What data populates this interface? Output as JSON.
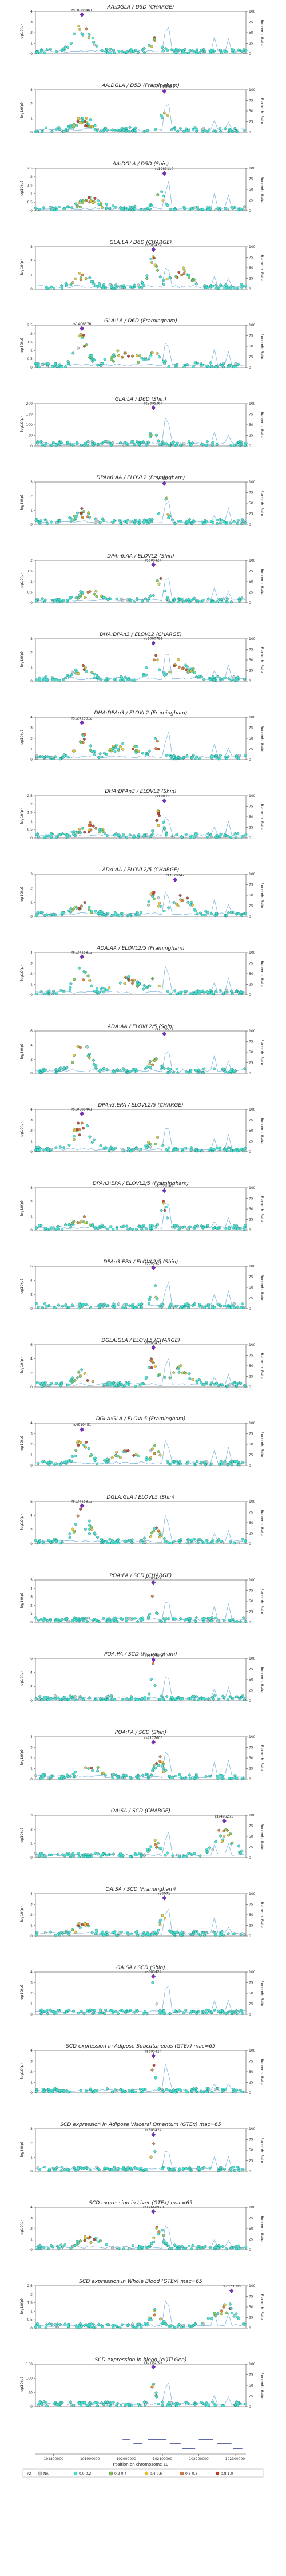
{
  "chart_data": {
    "type": "scatter",
    "xlabel": "Position on chromosome 10",
    "ylabel": "-log10(p)",
    "y2label": "Recomb. Rate",
    "x_ticks": [
      "101800000",
      "101900000",
      "102000000",
      "102100000",
      "102200000",
      "102300000"
    ],
    "xlim": [
      101750000,
      102330000
    ],
    "recomb_ticks": [
      0,
      25,
      50,
      75,
      100
    ],
    "legend": {
      "title": "r2",
      "entries": [
        {
          "label": "NA",
          "color": "#cccccc"
        },
        {
          "label": "0.0-0.2",
          "color": "#40e0d0"
        },
        {
          "label": "0.2-0.4",
          "color": "#7ec850"
        },
        {
          "label": "0.4-0.6",
          "color": "#e6c12e"
        },
        {
          "label": "0.6-0.8",
          "color": "#e8742a"
        },
        {
          "label": "0.8-1.0",
          "color": "#c0392b"
        }
      ]
    },
    "panels": [
      {
        "title": "AA:DGLA / D5D (CHARGE)",
        "ylim": [
          0,
          4
        ],
        "yticks": [
          0,
          1,
          2,
          3,
          4
        ],
        "lead": "rs10883461",
        "lead_pos": 101878000,
        "lead_y": 3.7,
        "shape": 1
      },
      {
        "title": "AA:DGLA / D5D (Framingham)",
        "ylim": [
          0,
          3
        ],
        "yticks": [
          0,
          1,
          2,
          3
        ],
        "lead": "rs11557927",
        "lead_pos": 102105000,
        "lead_y": 2.9,
        "shape": 2
      },
      {
        "title": "AA:DGLA / D5D (Shin)",
        "ylim": [
          0,
          2.5
        ],
        "yticks": [
          0,
          0.5,
          1,
          1.5,
          2,
          2.5
        ],
        "lead": "rs1983110",
        "lead_pos": 102105000,
        "lead_y": 2.2,
        "shape": 3
      },
      {
        "title": "GLA:LA / D6D (CHARGE)",
        "ylim": [
          0,
          3
        ],
        "yticks": [
          0,
          1,
          2,
          3
        ],
        "lead": "rs603424",
        "lead_pos": 102075000,
        "lead_y": 2.8,
        "shape": 4
      },
      {
        "title": "GLA:LA / D6D (Framingham)",
        "ylim": [
          0,
          2.5
        ],
        "yticks": [
          0,
          0.5,
          1,
          1.5,
          2,
          2.5
        ],
        "lead": "rs1406576",
        "lead_pos": 101878000,
        "lead_y": 2.3,
        "shape": 5
      },
      {
        "title": "GLA:LA / D6D (Shin)",
        "ylim": [
          0,
          200
        ],
        "yticks": [
          0,
          50,
          100,
          150,
          200
        ],
        "lead": "rs2305364",
        "lead_pos": 102075000,
        "lead_y": 180,
        "shape": 6
      },
      {
        "title": "DPAn6:AA / ELOVL2 (Framingham)",
        "ylim": [
          0,
          3
        ],
        "yticks": [
          0,
          1,
          2,
          3
        ],
        "lead": "rs3071",
        "lead_pos": 102105000,
        "lead_y": 2.9,
        "shape": 2
      },
      {
        "title": "DPAn6:AA / ELOVL2 (Shin)",
        "ylim": [
          0,
          2
        ],
        "yticks": [
          0,
          0.5,
          1,
          1.5,
          2
        ],
        "lead": "rs603424",
        "lead_pos": 102075000,
        "lead_y": 1.8,
        "shape": 3
      },
      {
        "title": "DHA:DPAn3 / ELOVL2 (CHARGE)",
        "ylim": [
          0,
          3
        ],
        "yticks": [
          0,
          1,
          2,
          3
        ],
        "lead": "rs2060792",
        "lead_pos": 102075000,
        "lead_y": 2.7,
        "shape": 4
      },
      {
        "title": "DHA:DPAn3 / ELOVL2 (Framingham)",
        "ylim": [
          0,
          4
        ],
        "yticks": [
          0,
          1,
          2,
          3,
          4
        ],
        "lead": "rs12415812",
        "lead_pos": 101878000,
        "lead_y": 3.5,
        "shape": 5
      },
      {
        "title": "DHA:DPAn3 / ELOVL2 (Shin)",
        "ylim": [
          0,
          2.5
        ],
        "yticks": [
          0,
          0.5,
          1,
          1.5,
          2,
          2.5
        ],
        "lead": "rs1983110",
        "lead_pos": 102105000,
        "lead_y": 2.2,
        "shape": 3
      },
      {
        "title": "ADA:AA / ELOVL2/5 (CHARGE)",
        "ylim": [
          0,
          3
        ],
        "yticks": [
          0,
          1,
          2,
          3
        ],
        "lead": "rs3870747",
        "lead_pos": 102135000,
        "lead_y": 2.6,
        "shape": 4
      },
      {
        "title": "ADA:AA / ELOVL2/5 (Framingham)",
        "ylim": [
          0,
          4
        ],
        "yticks": [
          0,
          1,
          2,
          3,
          4
        ],
        "lead": "rs12415812",
        "lead_pos": 101878000,
        "lead_y": 3.6,
        "shape": 5
      },
      {
        "title": "ADA:AA / ELOVL2/5 (Shin)",
        "ylim": [
          0,
          6
        ],
        "yticks": [
          0,
          2,
          4,
          6
        ],
        "lead": "rs7078572",
        "lead_pos": 102105000,
        "lead_y": 5.6,
        "shape": 1
      },
      {
        "title": "DPAn3:EPA / ELOVL2/5 (CHARGE)",
        "ylim": [
          0,
          4
        ],
        "yticks": [
          0,
          1,
          2,
          3,
          4
        ],
        "lead": "rs10883461",
        "lead_pos": 101878000,
        "lead_y": 3.6,
        "shape": 1
      },
      {
        "title": "DPAn3:EPA / ELOVL2/5 (Framingham)",
        "ylim": [
          0,
          3
        ],
        "yticks": [
          0,
          1,
          2,
          3
        ],
        "lead": "rs3829109",
        "lead_pos": 102105000,
        "lead_y": 2.8,
        "shape": 2
      },
      {
        "title": "DPAn3:EPA / ELOVL2/5 (Shin)",
        "ylim": [
          0,
          6
        ],
        "yticks": [
          0,
          2,
          4,
          6
        ],
        "lead": "rs603424",
        "lead_pos": 102075000,
        "lead_y": 5.8,
        "shape": 6
      },
      {
        "title": "DGLA:GLA / ELOVL5 (CHARGE)",
        "ylim": [
          0,
          6
        ],
        "yticks": [
          0,
          2,
          4,
          6
        ],
        "lead": "rs603424",
        "lead_pos": 102075000,
        "lead_y": 5.6,
        "shape": 4
      },
      {
        "title": "DGLA:GLA / ELOVL5 (Framingham)",
        "ylim": [
          0,
          4
        ],
        "yticks": [
          0,
          1,
          2,
          3,
          4
        ],
        "lead": "rs4919451",
        "lead_pos": 101878000,
        "lead_y": 3.4,
        "shape": 5
      },
      {
        "title": "DGLA:GLA / ELOVL5 (Shin)",
        "ylim": [
          0,
          6
        ],
        "yticks": [
          0,
          2,
          4,
          6
        ],
        "lead": "rs12415812",
        "lead_pos": 101878000,
        "lead_y": 5.4,
        "shape": 1
      },
      {
        "title": "POA:PA / SCD (CHARGE)",
        "ylim": [
          0,
          5
        ],
        "yticks": [
          0,
          1,
          2,
          3,
          4,
          5
        ],
        "lead": "rs603424",
        "lead_pos": 102075000,
        "lead_y": 4.7,
        "shape": 6
      },
      {
        "title": "POA:PA / SCD (Framingham)",
        "ylim": [
          0,
          6
        ],
        "yticks": [
          0,
          2,
          4,
          6
        ],
        "lead": "rs603424",
        "lead_pos": 102075000,
        "lead_y": 5.8,
        "shape": 6
      },
      {
        "title": "POA:PA / SCD (Shin)",
        "ylim": [
          0,
          4
        ],
        "yticks": [
          0,
          1,
          2,
          3,
          4
        ],
        "lead": "rs4177603",
        "lead_pos": 102075000,
        "lead_y": 3.5,
        "shape": 3
      },
      {
        "title": "OA:SA / SCD (CHARGE)",
        "ylim": [
          0,
          3
        ],
        "yticks": [
          0,
          1,
          2,
          3
        ],
        "lead": "rs2495275",
        "lead_pos": 102270000,
        "lead_y": 2.6,
        "shape": 7
      },
      {
        "title": "OA:SA / SCD (Framingham)",
        "ylim": [
          0,
          4
        ],
        "yticks": [
          0,
          1,
          2,
          3,
          4
        ],
        "lead": "rs3071",
        "lead_pos": 102105000,
        "lead_y": 3.6,
        "shape": 2
      },
      {
        "title": "OA:SA / SCD (Shin)",
        "ylim": [
          0,
          4
        ],
        "yticks": [
          0,
          1,
          2,
          3,
          4
        ],
        "lead": "rs603424",
        "lead_pos": 102075000,
        "lead_y": 3.6,
        "shape": 6
      },
      {
        "title": "SCD expression in Adipose Subcutaneous (GTEx) mac=65",
        "ylim": [
          0,
          4
        ],
        "yticks": [
          0,
          1,
          2,
          3,
          4
        ],
        "lead": "rs603424",
        "lead_pos": 102075000,
        "lead_y": 3.5,
        "shape": 6
      },
      {
        "title": "SCD expression in Adipose Visceral Omentum (GTEx) mac=65",
        "ylim": [
          0,
          3
        ],
        "yticks": [
          0,
          1,
          2,
          3
        ],
        "lead": "rs603424",
        "lead_pos": 102075000,
        "lead_y": 2.6,
        "shape": 6
      },
      {
        "title": "SCD expression in Liver (GTEx) mac=65",
        "ylim": [
          0,
          4
        ],
        "yticks": [
          0,
          1,
          2,
          3,
          4
        ],
        "lead": "rs17668978",
        "lead_pos": 102075000,
        "lead_y": 3.6,
        "shape": 3
      },
      {
        "title": "SCD expression in Whole Blood (GTEx) mac=65",
        "ylim": [
          0,
          2.5
        ],
        "yticks": [
          0,
          0.5,
          1,
          1.5,
          2,
          2.5
        ],
        "lead": "rs7073580",
        "lead_pos": 102290000,
        "lead_y": 2.2,
        "shape": 7
      },
      {
        "title": "SCD expression in blood (eQTLGen)",
        "ylim": [
          0,
          150
        ],
        "yticks": [
          0,
          50,
          100,
          150
        ],
        "lead": "rs3793767",
        "lead_pos": 102075000,
        "lead_y": 140,
        "shape": 6
      }
    ]
  }
}
